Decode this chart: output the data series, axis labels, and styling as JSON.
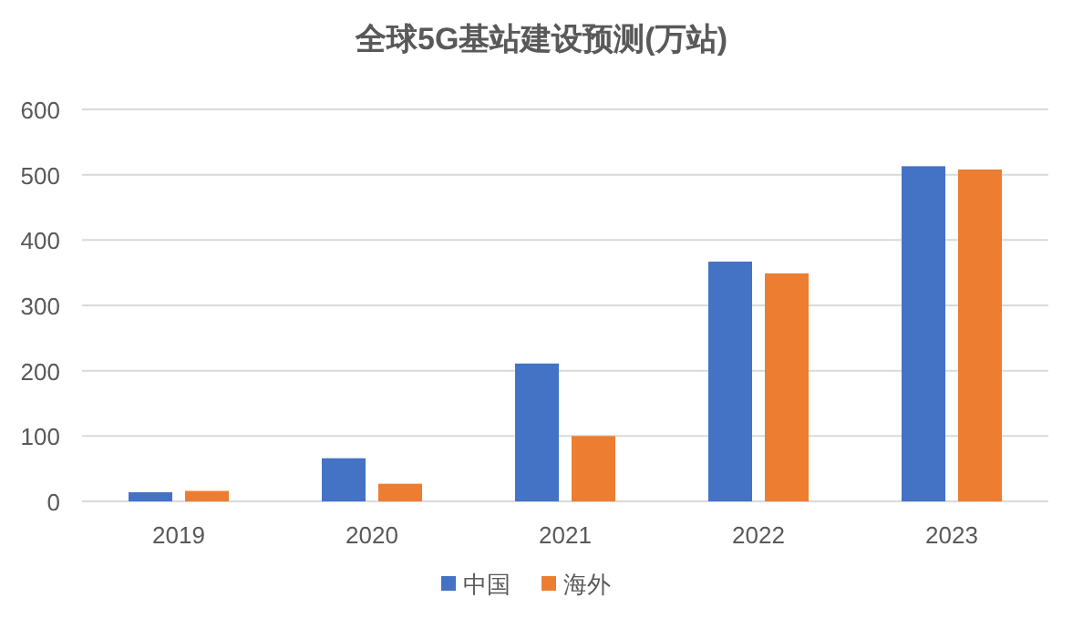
{
  "chart_data": {
    "type": "bar",
    "title": "全球5G基站建设预测(万站)",
    "categories": [
      "2019",
      "2020",
      "2021",
      "2022",
      "2023"
    ],
    "series": [
      {
        "name": "中国",
        "color": "#4472c4",
        "values": [
          14,
          66,
          211,
          367,
          513
        ]
      },
      {
        "name": "海外",
        "color": "#ed7d31",
        "values": [
          16,
          27,
          100,
          349,
          508
        ]
      }
    ],
    "ylim": [
      0,
      600
    ],
    "yticks": [
      0,
      100,
      200,
      300,
      400,
      500,
      600
    ],
    "grid": "y",
    "legend": "bottom"
  }
}
